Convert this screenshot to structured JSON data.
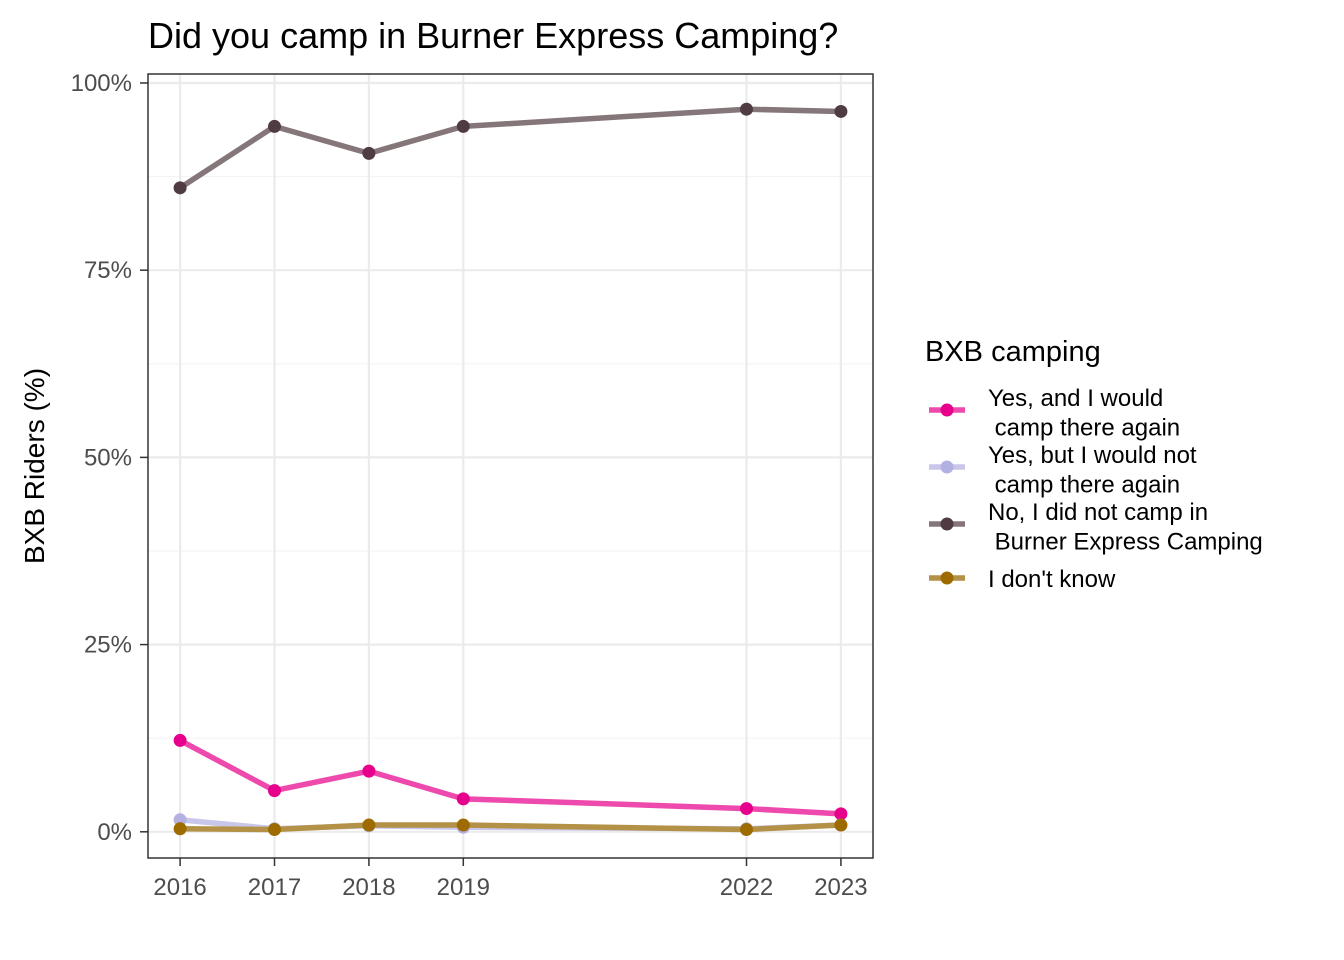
{
  "chart_data": {
    "type": "line",
    "title": "Did you camp in Burner Express Camping?",
    "ylabel": "BXB Riders (%)",
    "xlabel": "",
    "x": [
      2016,
      2017,
      2018,
      2019,
      2022,
      2023
    ],
    "x_tick_labels": [
      "2016",
      "2017",
      "2018",
      "2019",
      "2022",
      "2023"
    ],
    "ylim": [
      0,
      100
    ],
    "y_ticks": [
      0,
      25,
      50,
      75,
      100
    ],
    "y_tick_labels": [
      "0%",
      "25%",
      "50%",
      "75%",
      "100%"
    ],
    "grid": true,
    "legend": {
      "title": "BXB camping",
      "position": "right"
    },
    "series": [
      {
        "name": "Yes, and I would\n camp there again",
        "line_color": "#ee4aad",
        "point_color": "#e7008c",
        "values": [
          12.2,
          5.5,
          8.1,
          4.4,
          3.1,
          2.4
        ]
      },
      {
        "name": "Yes, but I would not\n camp there again",
        "line_color": "#c8c6e9",
        "point_color": "#b3b1e1",
        "values": [
          1.6,
          0.4,
          0.8,
          0.6,
          0.4,
          0.9
        ]
      },
      {
        "name": "No, I did not camp in\n Burner Express Camping",
        "line_color": "#857779",
        "point_color": "#4f3c42",
        "values": [
          86.0,
          94.2,
          90.6,
          94.2,
          96.5,
          96.2
        ]
      },
      {
        "name": "I don't know",
        "line_color": "#b39146",
        "point_color": "#9d6b00",
        "values": [
          0.4,
          0.3,
          0.9,
          0.9,
          0.3,
          0.9
        ]
      }
    ]
  }
}
